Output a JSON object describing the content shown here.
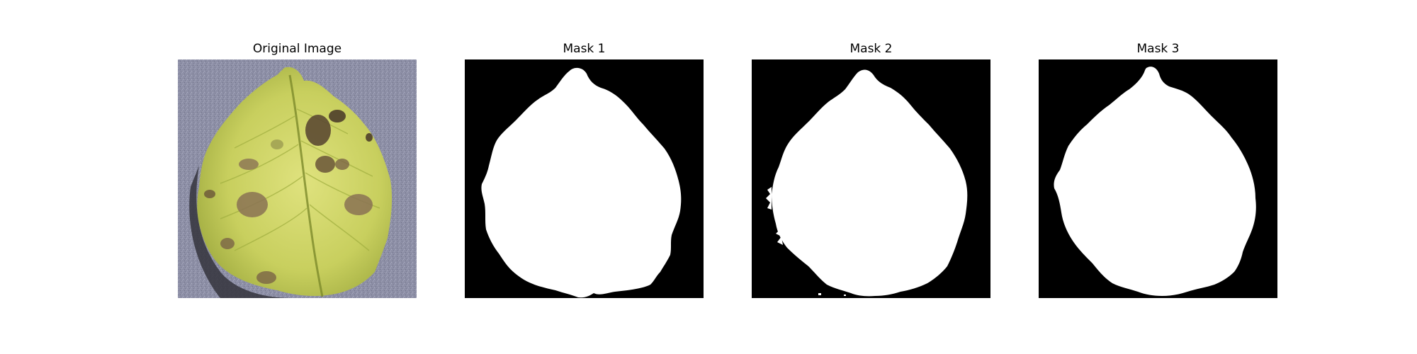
{
  "figure": {
    "panels": [
      {
        "title": "Original Image",
        "kind": "photo",
        "subject": "leaf-with-disease-spots"
      },
      {
        "title": "Mask 1",
        "kind": "binary-mask"
      },
      {
        "title": "Mask 2",
        "kind": "binary-mask"
      },
      {
        "title": "Mask 3",
        "kind": "binary-mask"
      }
    ]
  },
  "colors": {
    "background": "#ffffff",
    "mask_background": "#000000",
    "mask_foreground": "#ffffff",
    "leaf_light": "#d8dc74",
    "leaf_mid": "#b8c24e",
    "leaf_shadow": "#8e9a34",
    "spot_dark": "#5c4a32",
    "spot_mid": "#8a7254",
    "ground_gray": "#8d8fa6",
    "ground_dark": "#34343c"
  }
}
